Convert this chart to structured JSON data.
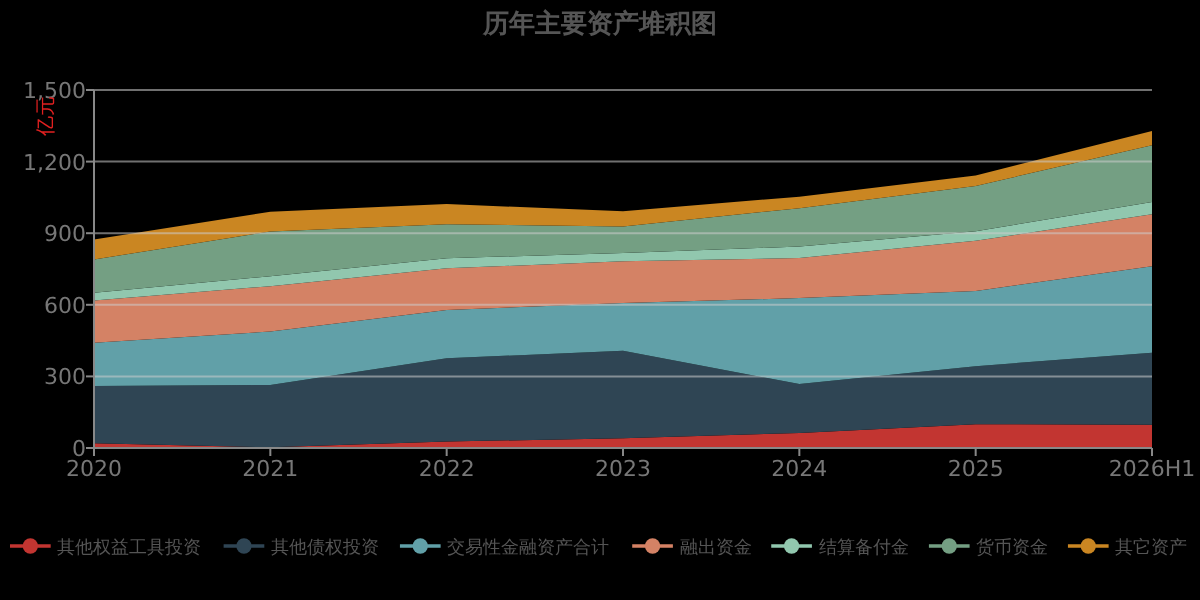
{
  "chart_data": {
    "type": "area",
    "title": "历年主要资产堆积图",
    "ylabel": "亿元",
    "categories": [
      "2020",
      "2021",
      "2022",
      "2023",
      "2024",
      "2025",
      "2026H1"
    ],
    "stacked": true,
    "grid": "y",
    "legend": "bottom",
    "ylim": [
      0,
      1500
    ],
    "yticks": [
      0,
      300,
      600,
      900,
      {
        "value": 1200,
        "label": "1,200"
      },
      {
        "value": 1500,
        "label": "1,500"
      }
    ],
    "series": [
      {
        "name": "其他权益工具投资",
        "color": "#c23531",
        "values": [
          20,
          3,
          27,
          41,
          63,
          100,
          97
        ]
      },
      {
        "name": "其他债权投资",
        "color": "#2f4554",
        "values": [
          240,
          261,
          349,
          366,
          205,
          243,
          302
        ]
      },
      {
        "name": "交易性金融资产合计",
        "color": "#61a0a8",
        "values": [
          181,
          224,
          202,
          201,
          360,
          315,
          363
        ]
      },
      {
        "name": "融出资金",
        "color": "#d48265",
        "values": [
          177,
          190,
          175,
          174,
          168,
          210,
          217
        ]
      },
      {
        "name": "结算备付金",
        "color": "#91c7ae",
        "values": [
          33,
          42,
          42,
          35,
          48,
          40,
          52
        ]
      },
      {
        "name": "货币资金",
        "color": "#749f83",
        "values": [
          139,
          187,
          143,
          111,
          161,
          190,
          238
        ]
      },
      {
        "name": "其它资产",
        "color": "#ca8622",
        "values": [
          84,
          83,
          84,
          64,
          48,
          44,
          59
        ]
      }
    ]
  }
}
